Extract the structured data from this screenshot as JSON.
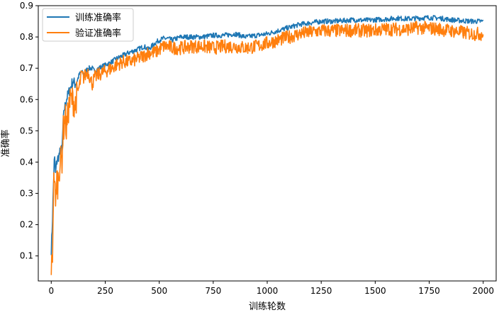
{
  "chart_data": {
    "type": "line",
    "xlabel": "训练轮数",
    "ylabel": "准确率",
    "xlim": [
      -60,
      2060
    ],
    "ylim": [
      0.02,
      0.9
    ],
    "xticks": [
      0,
      250,
      500,
      750,
      1000,
      1250,
      1500,
      1750,
      2000
    ],
    "yticks": [
      0.1,
      0.2,
      0.3,
      0.4,
      0.5,
      0.6,
      0.7,
      0.8,
      0.9
    ],
    "legend_position": "top-left",
    "grid": false,
    "series": [
      {
        "name": "训练准确率",
        "color": "#1f77b4",
        "x": [
          0,
          5,
          10,
          15,
          20,
          25,
          30,
          40,
          50,
          55,
          60,
          65,
          70,
          80,
          90,
          100,
          110,
          120,
          130,
          140,
          150,
          170,
          190,
          200,
          220,
          250,
          280,
          300,
          330,
          360,
          400,
          430,
          450,
          480,
          500,
          520,
          540,
          560,
          600,
          650,
          700,
          750,
          800,
          850,
          900,
          950,
          1000,
          1050,
          1100,
          1150,
          1200,
          1250,
          1300,
          1350,
          1400,
          1450,
          1500,
          1550,
          1600,
          1650,
          1700,
          1750,
          1800,
          1850,
          1900,
          1950,
          2000
        ],
        "y": [
          0.12,
          0.2,
          0.32,
          0.42,
          0.36,
          0.4,
          0.41,
          0.43,
          0.44,
          0.52,
          0.57,
          0.58,
          0.6,
          0.62,
          0.64,
          0.66,
          0.65,
          0.66,
          0.68,
          0.69,
          0.68,
          0.7,
          0.7,
          0.69,
          0.7,
          0.71,
          0.72,
          0.73,
          0.74,
          0.75,
          0.76,
          0.77,
          0.76,
          0.78,
          0.79,
          0.795,
          0.795,
          0.79,
          0.8,
          0.8,
          0.8,
          0.805,
          0.805,
          0.81,
          0.8,
          0.805,
          0.81,
          0.82,
          0.83,
          0.84,
          0.845,
          0.85,
          0.85,
          0.852,
          0.855,
          0.853,
          0.855,
          0.857,
          0.86,
          0.858,
          0.86,
          0.862,
          0.86,
          0.855,
          0.852,
          0.85,
          0.85
        ]
      },
      {
        "name": "验证准确率",
        "color": "#ff7f0e",
        "x": [
          0,
          5,
          10,
          15,
          20,
          25,
          30,
          40,
          50,
          55,
          60,
          65,
          70,
          80,
          90,
          100,
          110,
          120,
          130,
          140,
          150,
          170,
          190,
          200,
          220,
          250,
          280,
          300,
          330,
          360,
          400,
          430,
          450,
          480,
          500,
          520,
          540,
          560,
          600,
          650,
          700,
          750,
          800,
          850,
          900,
          950,
          1000,
          1050,
          1100,
          1150,
          1200,
          1250,
          1300,
          1350,
          1400,
          1450,
          1500,
          1550,
          1600,
          1650,
          1700,
          1750,
          1800,
          1850,
          1900,
          1950,
          2000
        ],
        "y": [
          0.07,
          0.06,
          0.3,
          0.38,
          0.24,
          0.36,
          0.33,
          0.4,
          0.41,
          0.5,
          0.52,
          0.55,
          0.5,
          0.57,
          0.6,
          0.6,
          0.58,
          0.62,
          0.64,
          0.68,
          0.67,
          0.69,
          0.65,
          0.67,
          0.68,
          0.69,
          0.7,
          0.71,
          0.72,
          0.72,
          0.73,
          0.74,
          0.75,
          0.75,
          0.76,
          0.77,
          0.77,
          0.765,
          0.765,
          0.77,
          0.77,
          0.765,
          0.77,
          0.77,
          0.765,
          0.77,
          0.78,
          0.79,
          0.8,
          0.81,
          0.815,
          0.82,
          0.82,
          0.82,
          0.822,
          0.82,
          0.822,
          0.825,
          0.825,
          0.825,
          0.83,
          0.828,
          0.825,
          0.82,
          0.815,
          0.81,
          0.81
        ]
      }
    ]
  }
}
